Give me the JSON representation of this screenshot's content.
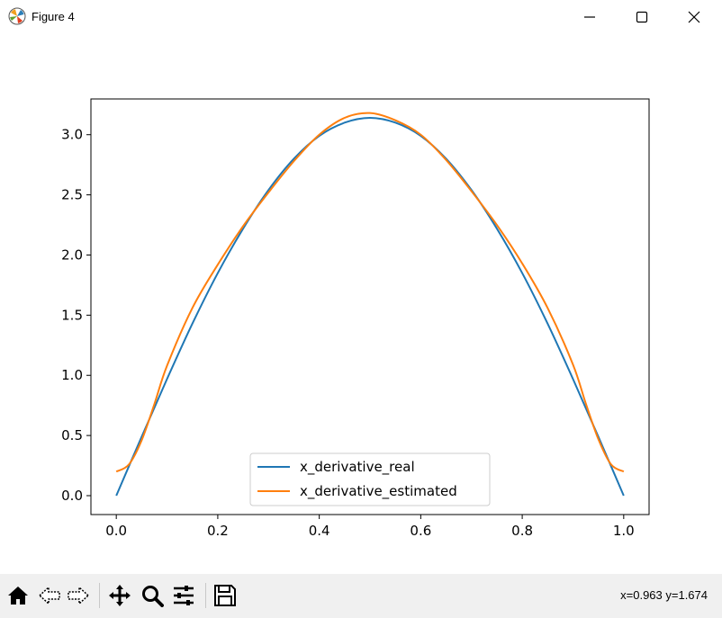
{
  "window": {
    "title": "Figure 4"
  },
  "toolbar": {
    "buttons": [
      "home-icon",
      "back-arrow-icon",
      "forward-arrow-icon",
      "pan-icon",
      "zoom-icon",
      "configure-subplots-icon",
      "save-icon"
    ],
    "coords": "x=0.963 y=1.674"
  },
  "chart_data": {
    "type": "line",
    "title": "",
    "xlabel": "",
    "ylabel": "",
    "xlim": [
      -0.05,
      1.05
    ],
    "ylim": [
      -0.157,
      3.297
    ],
    "xticks": [
      "0.0",
      "0.2",
      "0.4",
      "0.6",
      "0.8",
      "1.0"
    ],
    "yticks": [
      "0.0",
      "0.5",
      "1.0",
      "1.5",
      "2.0",
      "2.5",
      "3.0"
    ],
    "legend_position": "lower-center",
    "series": [
      {
        "name": "x_derivative_real",
        "color": "#1f77b4",
        "x": [
          0.0,
          0.05,
          0.1,
          0.15,
          0.2,
          0.25,
          0.3,
          0.35,
          0.4,
          0.45,
          0.5,
          0.55,
          0.6,
          0.65,
          0.7,
          0.75,
          0.8,
          0.85,
          0.9,
          0.95,
          1.0
        ],
        "y": [
          0.0,
          0.49,
          0.97,
          1.43,
          1.85,
          2.22,
          2.54,
          2.8,
          2.99,
          3.1,
          3.14,
          3.1,
          2.99,
          2.8,
          2.54,
          2.22,
          1.85,
          1.43,
          0.97,
          0.49,
          0.0
        ]
      },
      {
        "name": "x_derivative_estimated",
        "color": "#ff7f0e",
        "x": [
          0.0,
          0.025,
          0.05,
          0.075,
          0.1,
          0.15,
          0.2,
          0.25,
          0.3,
          0.35,
          0.4,
          0.45,
          0.5,
          0.55,
          0.6,
          0.65,
          0.7,
          0.75,
          0.8,
          0.85,
          0.9,
          0.925,
          0.95,
          0.975,
          1.0
        ],
        "y": [
          0.2,
          0.26,
          0.46,
          0.76,
          1.08,
          1.56,
          1.92,
          2.24,
          2.52,
          2.78,
          3.0,
          3.14,
          3.18,
          3.12,
          3.0,
          2.79,
          2.53,
          2.25,
          1.93,
          1.56,
          1.09,
          0.77,
          0.47,
          0.26,
          0.2
        ]
      }
    ]
  }
}
